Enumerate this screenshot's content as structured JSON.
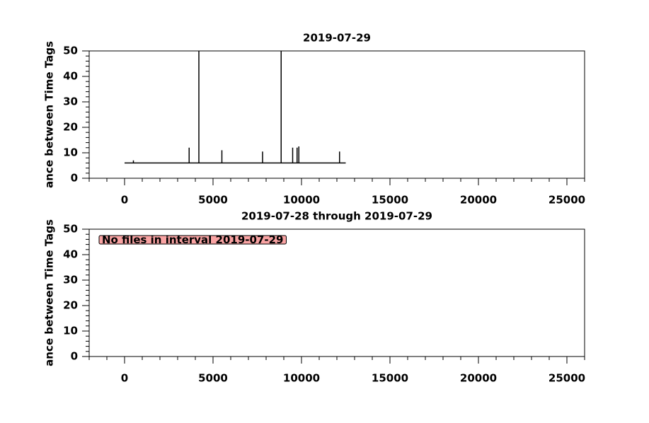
{
  "chart_data": [
    {
      "type": "line",
      "title": "2019-07-29",
      "y_label": "ance between Time Tags",
      "x": [
        0,
        500,
        500,
        500,
        3650,
        3650,
        3650,
        4200,
        4200,
        4200,
        5500,
        5500,
        5500,
        7800,
        7800,
        7800,
        8850,
        8850,
        8850,
        9500,
        9500,
        9500,
        9750,
        9750,
        9750,
        9850,
        9850,
        9850,
        12150,
        12150,
        12150,
        12500
      ],
      "series": [
        {
          "color": "#000000",
          "values": [
            6,
            6,
            7,
            6,
            6,
            12,
            6,
            6,
            50,
            6,
            6,
            11,
            6,
            6,
            10.5,
            6,
            6,
            50,
            6,
            6,
            12,
            6,
            6,
            12,
            6,
            6,
            12.5,
            6,
            6,
            10.5,
            6,
            6
          ]
        }
      ],
      "xlim": [
        -2000,
        26000
      ],
      "xticks": [
        0,
        5000,
        10000,
        15000,
        20000,
        25000
      ],
      "ylim": [
        0,
        50
      ],
      "yticks": [
        0,
        10,
        20,
        30,
        40,
        50
      ]
    },
    {
      "type": "line",
      "title": "2019-07-28 through 2019-07-29",
      "y_label": "ance between Time Tags",
      "annotation": "No files in interval 2019-07-29",
      "x": [],
      "series": [],
      "xlim": [
        -2000,
        26000
      ],
      "xticks": [
        0,
        5000,
        10000,
        15000,
        20000,
        25000
      ],
      "ylim": [
        0,
        50
      ],
      "yticks": [
        0,
        10,
        20,
        30,
        40,
        50
      ]
    }
  ]
}
